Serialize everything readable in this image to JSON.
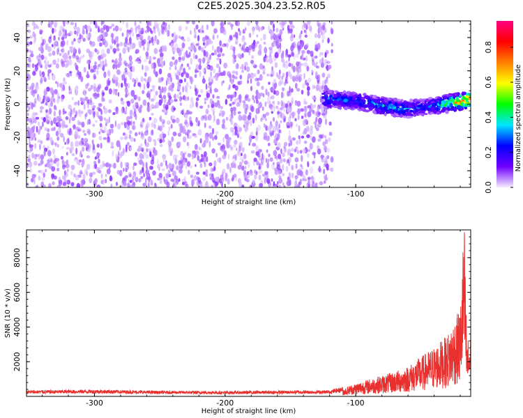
{
  "title": "C2E5.2025.304.23.52.R05",
  "colors": {
    "snr_line": "#e8302e",
    "spectrogram_noise": "#7a1ff0",
    "frame": "#000000"
  },
  "chart_data": [
    {
      "type": "heatmap",
      "xlabel": "Height of straight line (km)",
      "ylabel": "Frequency (Hz)",
      "xlim": [
        -352,
        -12
      ],
      "ylim": [
        -50,
        50
      ],
      "x_ticks": [
        "-300",
        "-200",
        "-100"
      ],
      "x_tick_values": [
        -300,
        -200,
        -100
      ],
      "y_ticks": [
        "-40",
        "-20",
        "0",
        "20",
        "40"
      ],
      "y_tick_values": [
        -40,
        -20,
        0,
        20,
        40
      ],
      "colorbar": {
        "label": "Normalized spectral amplitude",
        "range": [
          0.0,
          0.95
        ],
        "ticks": [
          "0.0",
          "0.2",
          "0.4",
          "0.6",
          "0.8"
        ],
        "tick_values": [
          0.0,
          0.2,
          0.4,
          0.6,
          0.8
        ],
        "colormap": [
          "#f4ecff",
          "#7000ff",
          "#0000ff",
          "#00e5ff",
          "#00ff00",
          "#ffff00",
          "#ff8000",
          "#ff0000",
          "#ff0080"
        ]
      },
      "noise_region": {
        "x_from": -352,
        "x_to": -118,
        "freq_from": -50,
        "freq_to": 50,
        "amplitude": 0.05
      },
      "signal_track": [
        {
          "x": -125,
          "freq": 3,
          "amplitude": 0.35
        },
        {
          "x": -100,
          "freq": 2,
          "amplitude": 0.3
        },
        {
          "x": -80,
          "freq": -1,
          "amplitude": 0.4
        },
        {
          "x": -60,
          "freq": -3,
          "amplitude": 0.35
        },
        {
          "x": -40,
          "freq": -1,
          "amplitude": 0.3
        },
        {
          "x": -25,
          "freq": 1,
          "amplitude": 0.7
        },
        {
          "x": -12,
          "freq": 3,
          "amplitude": 0.85
        }
      ]
    },
    {
      "type": "line",
      "xlabel": "Height of straight line (km)",
      "ylabel": "SNR (10 * v/v)",
      "xlim": [
        -352,
        -12
      ],
      "ylim": [
        0,
        9600
      ],
      "x_ticks": [
        "-300",
        "-200",
        "-100"
      ],
      "x_tick_values": [
        -300,
        -200,
        -100
      ],
      "y_ticks": [
        "2000",
        "4000",
        "6000",
        "8000"
      ],
      "y_tick_values": [
        2000,
        4000,
        6000,
        8000
      ],
      "series": [
        {
          "x": [
            -352,
            -300,
            -250,
            -200,
            -150,
            -120,
            -110,
            -100,
            -90,
            -80,
            -70,
            -60,
            -50,
            -40,
            -30,
            -25,
            -20,
            -17,
            -15,
            -12
          ],
          "values": [
            250,
            280,
            230,
            220,
            240,
            250,
            400,
            700,
            900,
            1100,
            1300,
            1600,
            2100,
            2600,
            3200,
            4000,
            4600,
            9500,
            3000,
            3200
          ]
        }
      ]
    }
  ]
}
